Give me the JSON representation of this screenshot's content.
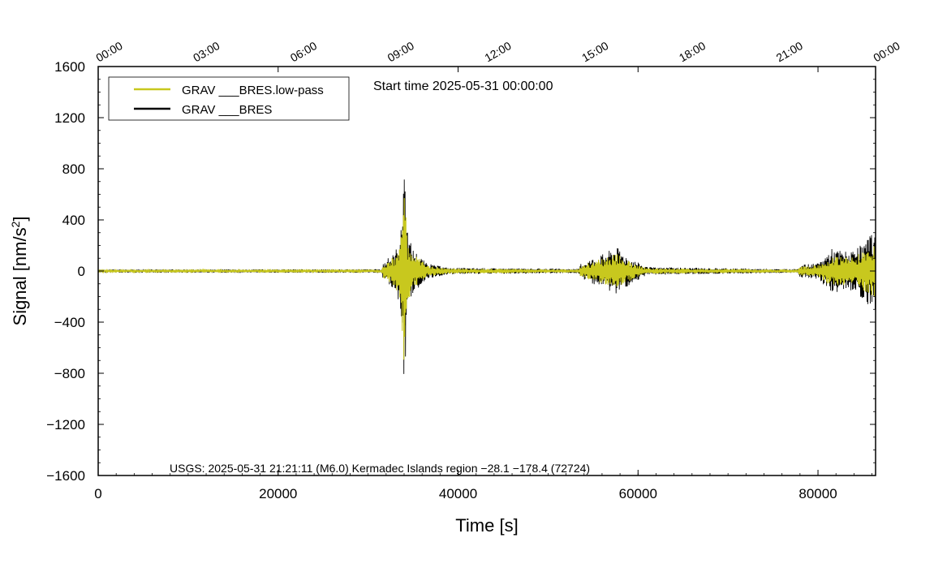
{
  "chart_data": {
    "type": "line",
    "xlabel": "Time [s]",
    "ylabel_main": "Signal [nm/s",
    "ylabel_sup": "2",
    "ylabel_close": "]",
    "xlim": [
      0,
      86400
    ],
    "ylim": [
      -1600,
      1600
    ],
    "x_ticks": [
      0,
      20000,
      40000,
      60000,
      80000
    ],
    "x_tick_labels": [
      "0",
      "20000",
      "40000",
      "60000",
      "80000"
    ],
    "y_ticks": [
      -1600,
      -1200,
      -800,
      -400,
      0,
      400,
      800,
      1200,
      1600
    ],
    "y_tick_labels": [
      "−1600",
      "−1200",
      "−800",
      "−400",
      "0",
      "400",
      "800",
      "1200",
      "1600"
    ],
    "x_minor_step": 2000,
    "y_minor_step": 100,
    "time_ticks_seconds": [
      0,
      10800,
      21600,
      32400,
      43200,
      54000,
      64800,
      75600,
      86400
    ],
    "time_tick_labels": [
      "00:00",
      "03:00",
      "06:00",
      "09:00",
      "12:00",
      "15:00",
      "18:00",
      "21:00",
      "00:00"
    ],
    "start_time": "Start time 2025-05-31 00:00:00",
    "event_text": "USGS: 2025-05-31 21:21:11 (M6.0) Kermadec Islands region −28.1 −178.4 (72724)",
    "legend_placement": "top-left",
    "series": [
      {
        "name": "GRAV ___BRES",
        "color": "#000000",
        "envelope": [
          {
            "x": 0,
            "amp": 12
          },
          {
            "x": 31500,
            "amp": 14
          },
          {
            "x": 31700,
            "amp": 70
          },
          {
            "x": 33000,
            "amp": 150
          },
          {
            "x": 33700,
            "amp": 350
          },
          {
            "x": 34000,
            "amp": 1150
          },
          {
            "x": 34300,
            "amp": 320
          },
          {
            "x": 35000,
            "amp": 180
          },
          {
            "x": 36500,
            "amp": 60
          },
          {
            "x": 39000,
            "amp": 25
          },
          {
            "x": 53400,
            "amp": 16
          },
          {
            "x": 53600,
            "amp": 60
          },
          {
            "x": 56500,
            "amp": 150
          },
          {
            "x": 57500,
            "amp": 200
          },
          {
            "x": 59000,
            "amp": 110
          },
          {
            "x": 61000,
            "amp": 30
          },
          {
            "x": 77700,
            "amp": 14
          },
          {
            "x": 78000,
            "amp": 50
          },
          {
            "x": 80000,
            "amp": 60
          },
          {
            "x": 81500,
            "amp": 180
          },
          {
            "x": 84000,
            "amp": 150
          },
          {
            "x": 86400,
            "amp": 320
          }
        ]
      },
      {
        "name": "GRAV ___BRES.low-pass",
        "color": "#c8c81e",
        "envelope": [
          {
            "x": 0,
            "amp": 10
          },
          {
            "x": 31500,
            "amp": 11
          },
          {
            "x": 31700,
            "amp": 55
          },
          {
            "x": 33000,
            "amp": 120
          },
          {
            "x": 33700,
            "amp": 300
          },
          {
            "x": 34000,
            "amp": 880
          },
          {
            "x": 34300,
            "amp": 260
          },
          {
            "x": 35000,
            "amp": 140
          },
          {
            "x": 36500,
            "amp": 45
          },
          {
            "x": 39000,
            "amp": 20
          },
          {
            "x": 53400,
            "amp": 12
          },
          {
            "x": 53600,
            "amp": 45
          },
          {
            "x": 56500,
            "amp": 110
          },
          {
            "x": 57500,
            "amp": 140
          },
          {
            "x": 59000,
            "amp": 80
          },
          {
            "x": 61000,
            "amp": 22
          },
          {
            "x": 77700,
            "amp": 11
          },
          {
            "x": 78000,
            "amp": 35
          },
          {
            "x": 80000,
            "amp": 45
          },
          {
            "x": 81500,
            "amp": 120
          },
          {
            "x": 84000,
            "amp": 110
          },
          {
            "x": 86400,
            "amp": 220
          }
        ]
      }
    ]
  }
}
